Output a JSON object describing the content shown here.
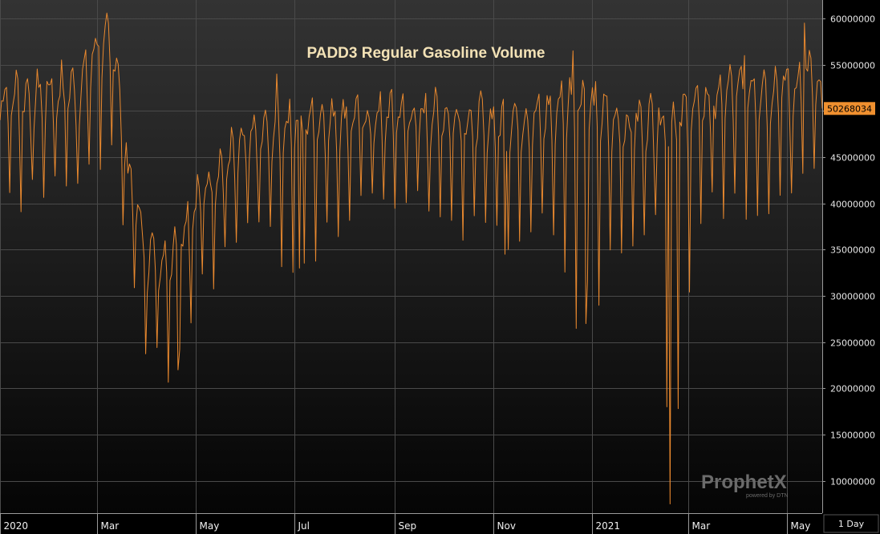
{
  "app": {
    "period": "1 Day",
    "watermark": "ProphetX",
    "watermark_sub": "powered by DTN",
    "colors": {
      "background_top": "#333333",
      "background_bottom": "#050505",
      "series": "#e8882e",
      "grid": "#4a4a4a",
      "axis_text": "#e6e6e6",
      "last_value_bg": "#f0902f",
      "title": "#f3e2b6"
    }
  },
  "chart_data": {
    "type": "line",
    "title": "PADD3 Regular Gasoline Volume",
    "xlabel": "",
    "ylabel": "",
    "ylim": [
      6500000,
      62000000
    ],
    "xlim": [
      "2020-01-01",
      "2021-05-23"
    ],
    "grid": true,
    "y_ticks": [
      10000000,
      15000000,
      20000000,
      25000000,
      30000000,
      35000000,
      40000000,
      45000000,
      50000000,
      55000000,
      60000000
    ],
    "y_tick_labels": [
      "10000000",
      "15000000",
      "20000000",
      "25000000",
      "30000000",
      "35000000",
      "40000000",
      "45000000",
      "50000000",
      "55000000",
      "60000000"
    ],
    "x_ticks": [
      {
        "date": "2020-01-01",
        "label": "2020"
      },
      {
        "date": "2020-03-01",
        "label": "Mar"
      },
      {
        "date": "2020-05-01",
        "label": "May"
      },
      {
        "date": "2020-07-01",
        "label": "Jul"
      },
      {
        "date": "2020-09-01",
        "label": "Sep"
      },
      {
        "date": "2020-11-01",
        "label": "Nov"
      },
      {
        "date": "2021-01-01",
        "label": "2021"
      },
      {
        "date": "2021-03-01",
        "label": "Mar"
      },
      {
        "date": "2021-05-01",
        "label": "May"
      }
    ],
    "last_value": 50268034,
    "last_value_label": "50268034",
    "anchors": [
      {
        "date": "2020-01-01",
        "level": 48000000,
        "amp": 5200000,
        "low": 39000000
      },
      {
        "date": "2020-02-20",
        "level": 49000000,
        "amp": 5200000,
        "low": 43500000
      },
      {
        "date": "2020-03-01",
        "level": 53500000,
        "amp": 5000000,
        "low": 45000000
      },
      {
        "date": "2020-03-12",
        "level": 53000000,
        "amp": 6000000,
        "low": 46000000
      },
      {
        "date": "2020-03-20",
        "level": 41000000,
        "amp": 4500000,
        "low": 31000000
      },
      {
        "date": "2020-04-01",
        "level": 31000000,
        "amp": 5000000,
        "low": 24000000
      },
      {
        "date": "2020-04-15",
        "level": 30500000,
        "amp": 6000000,
        "low": 22000000
      },
      {
        "date": "2020-05-01",
        "level": 37000000,
        "amp": 5000000,
        "low": 30000000
      },
      {
        "date": "2020-05-20",
        "level": 41500000,
        "amp": 5000000,
        "low": 34000000
      },
      {
        "date": "2020-06-10",
        "level": 44500000,
        "amp": 4500000,
        "low": 38000000
      },
      {
        "date": "2020-07-01",
        "level": 46000000,
        "amp": 4500000,
        "low": 33000000
      },
      {
        "date": "2020-08-01",
        "level": 46000000,
        "amp": 4800000,
        "low": 39000000
      },
      {
        "date": "2020-09-01",
        "level": 46500000,
        "amp": 4800000,
        "low": 40000000
      },
      {
        "date": "2020-10-01",
        "level": 46500000,
        "amp": 4500000,
        "low": 40000000
      },
      {
        "date": "2020-11-01",
        "level": 46000000,
        "amp": 4500000,
        "low": 35000000
      },
      {
        "date": "2020-12-01",
        "level": 46000000,
        "amp": 5000000,
        "low": 38000000
      },
      {
        "date": "2020-12-22",
        "level": 48000000,
        "amp": 6000000,
        "low": 27000000
      },
      {
        "date": "2021-01-15",
        "level": 45500000,
        "amp": 4500000,
        "low": 34000000
      },
      {
        "date": "2021-02-10",
        "level": 46000000,
        "amp": 4800000,
        "low": 40000000
      },
      {
        "date": "2021-02-20",
        "level": 46000000,
        "amp": 5000000,
        "low": 7500000
      },
      {
        "date": "2021-03-05",
        "level": 47000000,
        "amp": 4500000,
        "low": 39000000
      },
      {
        "date": "2021-04-01",
        "level": 49500000,
        "amp": 5000000,
        "low": 40000000
      },
      {
        "date": "2021-05-01",
        "level": 49000000,
        "amp": 5500000,
        "low": 40500000
      },
      {
        "date": "2021-05-16",
        "level": 50000000,
        "amp": 6000000,
        "low": 43000000
      },
      {
        "date": "2021-05-23",
        "level": 50268034,
        "amp": 2000000,
        "low": 43000000
      }
    ],
    "dips": [
      {
        "date": "2020-11-08",
        "value": 34500000
      },
      {
        "date": "2020-12-28",
        "value": 27000000
      },
      {
        "date": "2021-02-18",
        "value": 7500000
      },
      {
        "date": "2021-02-16",
        "value": 18000000
      },
      {
        "date": "2020-07-04",
        "value": 33000000
      },
      {
        "date": "2020-04-20",
        "value": 22000000
      }
    ],
    "peaks": [
      {
        "date": "2020-03-08",
        "value": 59500000
      },
      {
        "date": "2020-03-02",
        "value": 57000000
      },
      {
        "date": "2020-06-20",
        "value": 54000000
      },
      {
        "date": "2020-12-20",
        "value": 56500000
      },
      {
        "date": "2021-05-12",
        "value": 59500000
      },
      {
        "date": "2021-04-05",
        "value": 56000000
      }
    ]
  }
}
